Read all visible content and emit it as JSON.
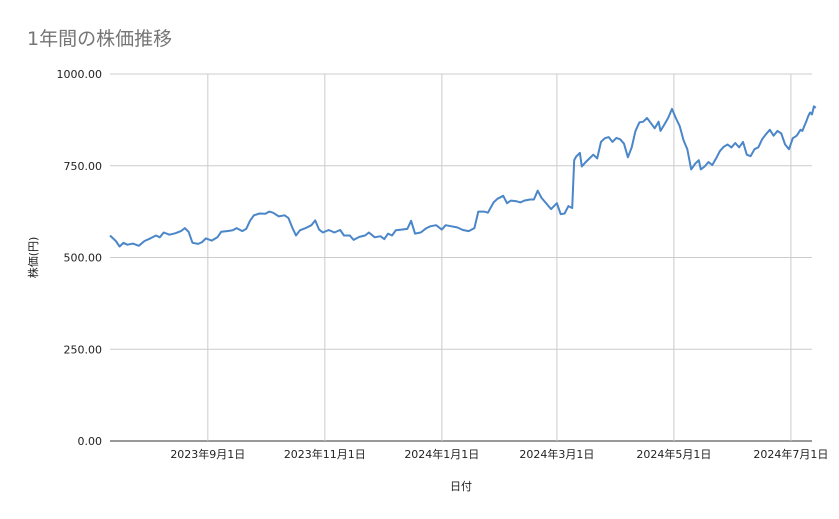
{
  "chart_data": {
    "type": "line",
    "title": "1年間の株価推移",
    "xlabel": "日付",
    "ylabel": "株価(円)",
    "ylim": [
      0,
      1000
    ],
    "yticks": [
      "0.00",
      "250.00",
      "500.00",
      "750.00",
      "1000.00"
    ],
    "xticks": [
      {
        "date": "2023-09-01",
        "label": "2023年9月1日"
      },
      {
        "date": "2023-11-01",
        "label": "2023年11月1日"
      },
      {
        "date": "2024-01-01",
        "label": "2024年1月1日"
      },
      {
        "date": "2024-03-01",
        "label": "2024年3月1日"
      },
      {
        "date": "2024-05-01",
        "label": "2024年5月1日"
      },
      {
        "date": "2024-07-01",
        "label": "2024年7月1日"
      }
    ],
    "xlim": [
      "2023-07-12",
      "2024-07-12"
    ],
    "grid": true,
    "series": [
      {
        "name": "",
        "color": "#4a86c8",
        "points": [
          [
            "2023-07-12",
            560
          ],
          [
            "2023-07-15",
            545
          ],
          [
            "2023-07-17",
            530
          ],
          [
            "2023-07-19",
            540
          ],
          [
            "2023-07-21",
            535
          ],
          [
            "2023-07-24",
            538
          ],
          [
            "2023-07-27",
            532
          ],
          [
            "2023-07-30",
            545
          ],
          [
            "2023-08-02",
            552
          ],
          [
            "2023-08-05",
            560
          ],
          [
            "2023-08-07",
            555
          ],
          [
            "2023-08-09",
            568
          ],
          [
            "2023-08-12",
            562
          ],
          [
            "2023-08-15",
            566
          ],
          [
            "2023-08-18",
            572
          ],
          [
            "2023-08-20",
            580
          ],
          [
            "2023-08-22",
            570
          ],
          [
            "2023-08-24",
            540
          ],
          [
            "2023-08-27",
            537
          ],
          [
            "2023-08-29",
            542
          ],
          [
            "2023-08-31",
            552
          ],
          [
            "2023-09-03",
            546
          ],
          [
            "2023-09-06",
            555
          ],
          [
            "2023-09-08",
            570
          ],
          [
            "2023-09-11",
            572
          ],
          [
            "2023-09-14",
            574
          ],
          [
            "2023-09-16",
            580
          ],
          [
            "2023-09-19",
            572
          ],
          [
            "2023-09-21",
            578
          ],
          [
            "2023-09-23",
            600
          ],
          [
            "2023-09-25",
            615
          ],
          [
            "2023-09-28",
            620
          ],
          [
            "2023-10-01",
            619
          ],
          [
            "2023-10-03",
            625
          ],
          [
            "2023-10-05",
            622
          ],
          [
            "2023-10-08",
            612
          ],
          [
            "2023-10-11",
            615
          ],
          [
            "2023-10-13",
            608
          ],
          [
            "2023-10-15",
            582
          ],
          [
            "2023-10-17",
            560
          ],
          [
            "2023-10-19",
            574
          ],
          [
            "2023-10-22",
            580
          ],
          [
            "2023-10-25",
            588
          ],
          [
            "2023-10-27",
            601
          ],
          [
            "2023-10-29",
            576
          ],
          [
            "2023-10-31",
            568
          ],
          [
            "2023-11-03",
            575
          ],
          [
            "2023-11-06",
            568
          ],
          [
            "2023-11-09",
            575
          ],
          [
            "2023-11-11",
            560
          ],
          [
            "2023-11-14",
            560
          ],
          [
            "2023-11-16",
            548
          ],
          [
            "2023-11-19",
            556
          ],
          [
            "2023-11-22",
            560
          ],
          [
            "2023-11-24",
            568
          ],
          [
            "2023-11-27",
            555
          ],
          [
            "2023-11-30",
            558
          ],
          [
            "2023-12-02",
            550
          ],
          [
            "2023-12-04",
            565
          ],
          [
            "2023-12-06",
            560
          ],
          [
            "2023-12-08",
            574
          ],
          [
            "2023-12-11",
            576
          ],
          [
            "2023-12-14",
            578
          ],
          [
            "2023-12-16",
            600
          ],
          [
            "2023-12-18",
            565
          ],
          [
            "2023-12-21",
            568
          ],
          [
            "2023-12-24",
            580
          ],
          [
            "2023-12-26",
            585
          ],
          [
            "2023-12-29",
            588
          ],
          [
            "2024-01-01",
            576
          ],
          [
            "2024-01-03",
            588
          ],
          [
            "2024-01-06",
            585
          ],
          [
            "2024-01-09",
            582
          ],
          [
            "2024-01-12",
            575
          ],
          [
            "2024-01-15",
            572
          ],
          [
            "2024-01-18",
            580
          ],
          [
            "2024-01-20",
            625
          ],
          [
            "2024-01-23",
            625
          ],
          [
            "2024-01-25",
            622
          ],
          [
            "2024-01-28",
            650
          ],
          [
            "2024-01-30",
            660
          ],
          [
            "2024-02-02",
            668
          ],
          [
            "2024-02-04",
            648
          ],
          [
            "2024-02-06",
            655
          ],
          [
            "2024-02-09",
            653
          ],
          [
            "2024-02-11",
            650
          ],
          [
            "2024-02-13",
            655
          ],
          [
            "2024-02-16",
            658
          ],
          [
            "2024-02-18",
            658
          ],
          [
            "2024-02-20",
            682
          ],
          [
            "2024-02-22",
            662
          ],
          [
            "2024-02-24",
            650
          ],
          [
            "2024-02-27",
            632
          ],
          [
            "2024-03-01",
            648
          ],
          [
            "2024-03-03",
            618
          ],
          [
            "2024-03-05",
            620
          ],
          [
            "2024-03-07",
            640
          ],
          [
            "2024-03-09",
            635
          ],
          [
            "2024-03-10",
            765
          ],
          [
            "2024-03-11",
            775
          ],
          [
            "2024-03-13",
            785
          ],
          [
            "2024-03-14",
            748
          ],
          [
            "2024-03-16",
            760
          ],
          [
            "2024-03-18",
            770
          ],
          [
            "2024-03-20",
            780
          ],
          [
            "2024-03-22",
            770
          ],
          [
            "2024-03-24",
            815
          ],
          [
            "2024-03-26",
            825
          ],
          [
            "2024-03-28",
            828
          ],
          [
            "2024-03-30",
            815
          ],
          [
            "2024-04-01",
            826
          ],
          [
            "2024-04-03",
            822
          ],
          [
            "2024-04-05",
            810
          ],
          [
            "2024-04-07",
            773
          ],
          [
            "2024-04-09",
            800
          ],
          [
            "2024-04-11",
            845
          ],
          [
            "2024-04-13",
            868
          ],
          [
            "2024-04-15",
            870
          ],
          [
            "2024-04-17",
            880
          ],
          [
            "2024-04-19",
            866
          ],
          [
            "2024-04-21",
            852
          ],
          [
            "2024-04-23",
            870
          ],
          [
            "2024-04-24",
            845
          ],
          [
            "2024-04-26",
            862
          ],
          [
            "2024-04-28",
            880
          ],
          [
            "2024-04-30",
            905
          ],
          [
            "2024-05-02",
            880
          ],
          [
            "2024-05-04",
            858
          ],
          [
            "2024-05-06",
            820
          ],
          [
            "2024-05-08",
            795
          ],
          [
            "2024-05-10",
            740
          ],
          [
            "2024-05-12",
            755
          ],
          [
            "2024-05-14",
            765
          ],
          [
            "2024-05-15",
            740
          ],
          [
            "2024-05-17",
            748
          ],
          [
            "2024-05-19",
            760
          ],
          [
            "2024-05-21",
            752
          ],
          [
            "2024-05-23",
            770
          ],
          [
            "2024-05-25",
            790
          ],
          [
            "2024-05-27",
            802
          ],
          [
            "2024-05-29",
            808
          ],
          [
            "2024-05-31",
            800
          ],
          [
            "2024-06-02",
            812
          ],
          [
            "2024-06-04",
            800
          ],
          [
            "2024-06-06",
            815
          ],
          [
            "2024-06-08",
            780
          ],
          [
            "2024-06-10",
            776
          ],
          [
            "2024-06-12",
            795
          ],
          [
            "2024-06-14",
            800
          ],
          [
            "2024-06-16",
            822
          ],
          [
            "2024-06-18",
            836
          ],
          [
            "2024-06-20",
            848
          ],
          [
            "2024-06-22",
            832
          ],
          [
            "2024-06-24",
            845
          ],
          [
            "2024-06-26",
            838
          ],
          [
            "2024-06-28",
            808
          ],
          [
            "2024-06-30",
            795
          ],
          [
            "2024-07-02",
            825
          ],
          [
            "2024-07-04",
            832
          ],
          [
            "2024-07-06",
            848
          ],
          [
            "2024-07-07",
            845
          ],
          [
            "2024-07-08",
            858
          ],
          [
            "2024-07-09",
            870
          ],
          [
            "2024-07-10",
            885
          ],
          [
            "2024-07-11",
            895
          ],
          [
            "2024-07-12",
            890
          ],
          [
            "2024-07-13",
            912
          ],
          [
            "2024-07-14",
            908
          ]
        ]
      }
    ]
  }
}
